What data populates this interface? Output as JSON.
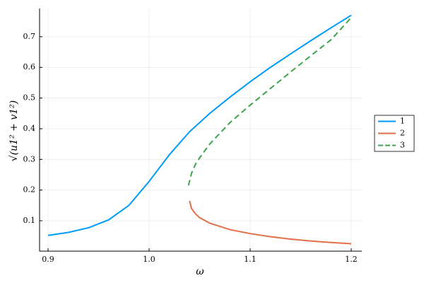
{
  "chart_data": {
    "type": "line",
    "x_label": "ω",
    "y_label": "√(u1² + v1²)",
    "xlim": [
      0.8916,
      1.2105
    ],
    "ylim": [
      0.0008,
      0.792
    ],
    "xticks": [
      0.9,
      {
        "value": 1,
        "label": "1.0"
      },
      1.1,
      1.2
    ],
    "yticks": [
      0.1,
      0.2,
      0.3,
      0.4,
      0.5,
      0.6,
      0.7
    ],
    "grid": true,
    "legend": "right",
    "series": [
      {
        "name": "1",
        "color": "#009af9",
        "dash": false,
        "x": [
          0.9,
          0.92,
          0.94,
          0.96,
          0.98,
          1.0,
          1.02,
          1.04,
          1.06,
          1.08,
          1.1,
          1.12,
          1.14,
          1.16,
          1.18,
          1.2
        ],
        "values": [
          0.052,
          0.062,
          0.077,
          0.103,
          0.15,
          0.228,
          0.315,
          0.39,
          0.45,
          0.503,
          0.553,
          0.6,
          0.644,
          0.687,
          0.729,
          0.77
        ]
      },
      {
        "name": "2",
        "color": "#e26f46",
        "dash": false,
        "x": [
          1.04,
          1.042,
          1.046,
          1.05,
          1.06,
          1.08,
          1.1,
          1.12,
          1.14,
          1.16,
          1.18,
          1.2
        ],
        "values": [
          0.165,
          0.14,
          0.122,
          0.11,
          0.092,
          0.071,
          0.058,
          0.048,
          0.04,
          0.034,
          0.029,
          0.025
        ]
      },
      {
        "name": "3",
        "color": "#3da44d",
        "dash": true,
        "x": [
          1.039,
          1.042,
          1.046,
          1.05,
          1.06,
          1.08,
          1.1,
          1.12,
          1.14,
          1.16,
          1.18,
          1.2
        ],
        "values": [
          0.215,
          0.255,
          0.285,
          0.305,
          0.35,
          0.42,
          0.477,
          0.531,
          0.585,
          0.638,
          0.69,
          0.762
        ]
      }
    ]
  }
}
